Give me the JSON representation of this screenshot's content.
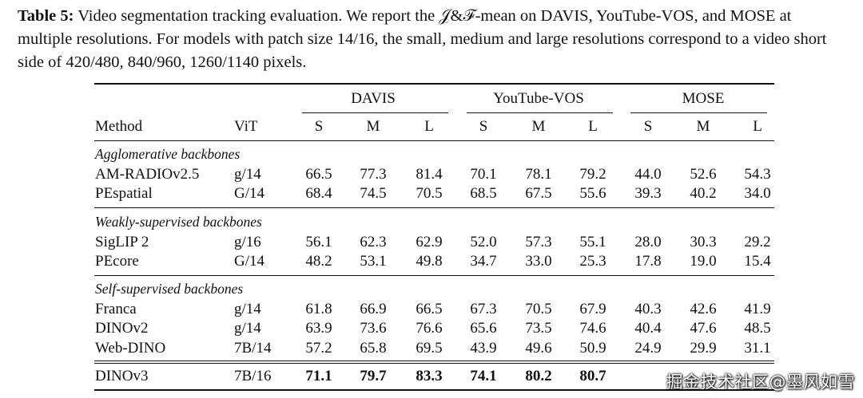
{
  "caption": {
    "label": "Table 5:",
    "text": " Video segmentation tracking evaluation. We report the 𝒥&ℱ-mean on DAVIS, YouTube-VOS, and MOSE at multiple resolutions. For models with patch size 14/16, the small, medium and large resolutions correspond to a video short side of 420/480, 840/960, 1260/1140 pixels."
  },
  "table": {
    "group_headers": [
      "DAVIS",
      "YouTube-VOS",
      "MOSE"
    ],
    "col_headers": [
      "Method",
      "ViT",
      "S",
      "M",
      "L",
      "S",
      "M",
      "L",
      "S",
      "M",
      "L"
    ],
    "sections": [
      {
        "title": "Agglomerative backbones",
        "rows": [
          {
            "method": "AM-RADIOv2.5",
            "vit": "g/14",
            "values": [
              "66.5",
              "77.3",
              "81.4",
              "70.1",
              "78.1",
              "79.2",
              "44.0",
              "52.6",
              "54.3"
            ]
          },
          {
            "method": "PEspatial",
            "vit": "G/14",
            "values": [
              "68.4",
              "74.5",
              "70.5",
              "68.5",
              "67.5",
              "55.6",
              "39.3",
              "40.2",
              "34.0"
            ]
          }
        ]
      },
      {
        "title": "Weakly-supervised backbones",
        "rows": [
          {
            "method": "SigLIP 2",
            "vit": "g/16",
            "values": [
              "56.1",
              "62.3",
              "62.9",
              "52.0",
              "57.3",
              "55.1",
              "28.0",
              "30.3",
              "29.2"
            ]
          },
          {
            "method": "PEcore",
            "vit": "G/14",
            "values": [
              "48.2",
              "53.1",
              "49.8",
              "34.7",
              "33.0",
              "25.3",
              "17.8",
              "19.0",
              "15.4"
            ]
          }
        ]
      },
      {
        "title": "Self-supervised backbones",
        "rows": [
          {
            "method": "Franca",
            "vit": "g/14",
            "values": [
              "61.8",
              "66.9",
              "66.5",
              "67.3",
              "70.5",
              "67.9",
              "40.3",
              "42.6",
              "41.9"
            ]
          },
          {
            "method": "DINOv2",
            "vit": "g/14",
            "values": [
              "63.9",
              "73.6",
              "76.6",
              "65.6",
              "73.5",
              "74.6",
              "40.4",
              "47.6",
              "48.5"
            ]
          },
          {
            "method": "Web-DINO",
            "vit": "7B/14",
            "values": [
              "57.2",
              "65.8",
              "69.5",
              "43.9",
              "49.6",
              "50.9",
              "24.9",
              "29.9",
              "31.1"
            ]
          }
        ]
      }
    ],
    "final_row": {
      "method": "DINOv3",
      "vit": "7B/16",
      "values": [
        "71.1",
        "79.7",
        "83.3",
        "74.1",
        "80.2",
        "80.7",
        "",
        "",
        ""
      ]
    }
  },
  "watermark": "掘金技术社区@墨风如雪"
}
